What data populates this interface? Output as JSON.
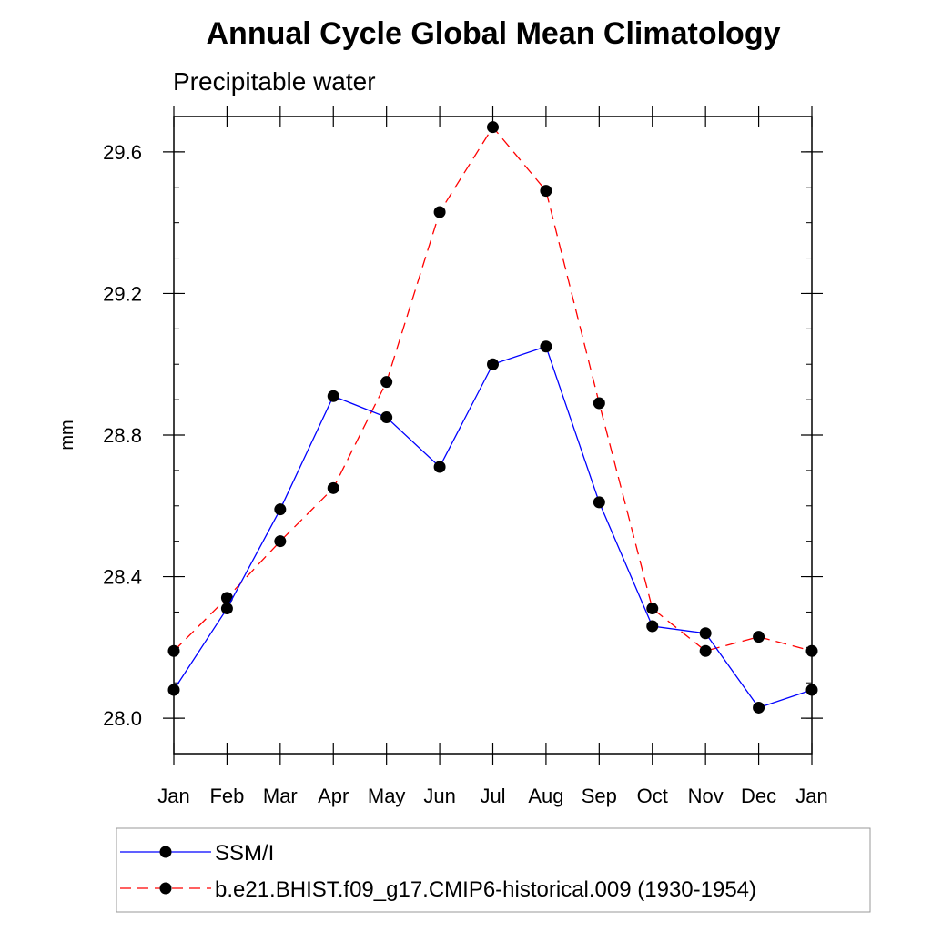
{
  "chart_data": {
    "type": "line",
    "title": "Annual Cycle Global Mean Climatology",
    "subtitle": "Precipitable water",
    "ylabel": "mm",
    "xlabel": "",
    "categories": [
      "Jan",
      "Feb",
      "Mar",
      "Apr",
      "May",
      "Jun",
      "Jul",
      "Aug",
      "Sep",
      "Oct",
      "Nov",
      "Dec",
      "Jan"
    ],
    "ylim": [
      27.9,
      29.7
    ],
    "yticks": [
      28.0,
      28.4,
      28.8,
      29.2,
      29.6
    ],
    "ytick_labels": [
      "28.0",
      "28.4",
      "28.8",
      "29.2",
      "29.6"
    ],
    "minor_ytick_step": 0.1,
    "grid": false,
    "legend": {
      "placement": "bottom"
    },
    "series": [
      {
        "name": "SSM/I",
        "color": "#0000ff",
        "line_style": "solid",
        "marker": "circle",
        "values": [
          28.08,
          28.31,
          28.59,
          28.91,
          28.85,
          28.71,
          29.0,
          29.05,
          28.61,
          28.26,
          28.24,
          28.03,
          28.08
        ]
      },
      {
        "name": "b.e21.BHIST.f09_g17.CMIP6-historical.009 (1930-1954)",
        "color": "#ff0000",
        "line_style": "dashed",
        "marker": "circle",
        "values": [
          28.19,
          28.34,
          28.5,
          28.65,
          28.95,
          29.43,
          29.67,
          29.49,
          28.89,
          28.31,
          28.19,
          28.23,
          28.19
        ]
      }
    ]
  }
}
